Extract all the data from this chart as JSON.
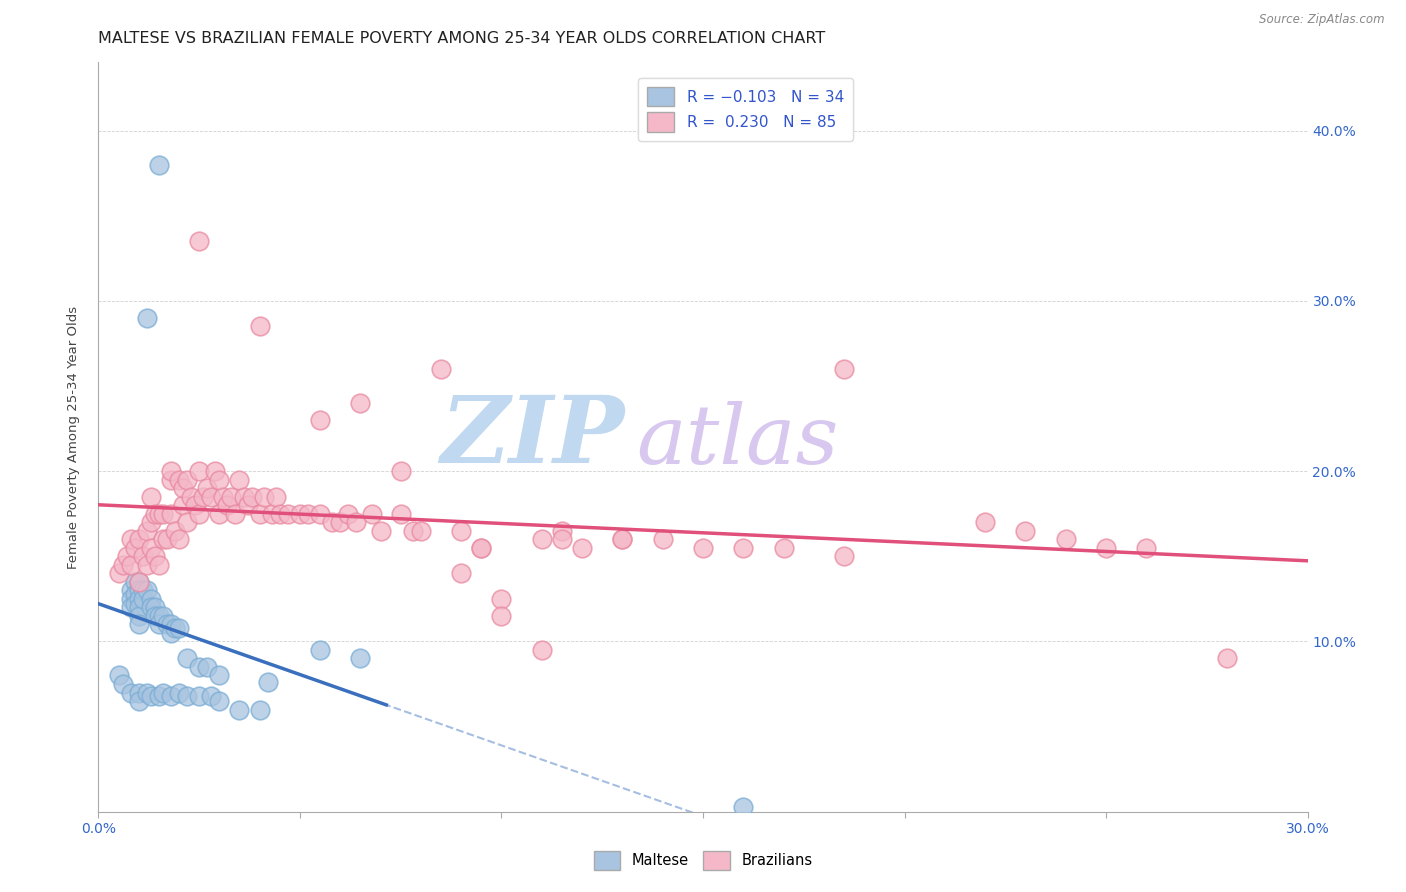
{
  "title": "MALTESE VS BRAZILIAN FEMALE POVERTY AMONG 25-34 YEAR OLDS CORRELATION CHART",
  "source": "Source: ZipAtlas.com",
  "ylabel": "Female Poverty Among 25-34 Year Olds",
  "xlim": [
    0.0,
    0.3
  ],
  "ylim": [
    0.0,
    0.44
  ],
  "xticks": [
    0.0,
    0.3
  ],
  "yticks": [
    0.1,
    0.2,
    0.3,
    0.4
  ],
  "maltese_R": -0.103,
  "maltese_N": 34,
  "brazilian_R": 0.23,
  "brazilian_N": 85,
  "maltese_color": "#a8c4e0",
  "maltese_edge": "#7aadd4",
  "brazilian_color": "#f4b8c8",
  "brazilian_edge": "#e98aa0",
  "maltese_line_color": "#3a6fbd",
  "brazilian_line_color": "#e0507a",
  "background_color": "#ffffff",
  "grid_color": "#cccccc",
  "watermark": "ZIPatlas",
  "watermark_color_zip": "#c0d8f0",
  "watermark_color_atlas": "#d8c8f0",
  "title_fontsize": 11.5,
  "axis_fontsize": 9.5,
  "maltese_x": [
    0.008,
    0.008,
    0.008,
    0.009,
    0.009,
    0.009,
    0.01,
    0.01,
    0.01,
    0.01,
    0.01,
    0.01,
    0.011,
    0.011,
    0.012,
    0.012,
    0.013,
    0.013,
    0.014,
    0.014,
    0.015,
    0.015,
    0.016,
    0.017,
    0.018,
    0.018,
    0.019,
    0.02,
    0.022,
    0.025,
    0.027,
    0.03,
    0.042,
    0.015
  ],
  "maltese_y": [
    0.13,
    0.125,
    0.12,
    0.135,
    0.128,
    0.122,
    0.135,
    0.13,
    0.125,
    0.12,
    0.115,
    0.11,
    0.13,
    0.125,
    0.29,
    0.13,
    0.125,
    0.12,
    0.12,
    0.115,
    0.115,
    0.11,
    0.115,
    0.11,
    0.11,
    0.105,
    0.108,
    0.108,
    0.09,
    0.085,
    0.085,
    0.08,
    0.076,
    0.38
  ],
  "brazilian_x": [
    0.005,
    0.006,
    0.007,
    0.008,
    0.008,
    0.009,
    0.01,
    0.01,
    0.011,
    0.012,
    0.012,
    0.013,
    0.013,
    0.013,
    0.014,
    0.014,
    0.015,
    0.015,
    0.016,
    0.016,
    0.017,
    0.018,
    0.018,
    0.018,
    0.019,
    0.02,
    0.02,
    0.021,
    0.021,
    0.022,
    0.022,
    0.023,
    0.024,
    0.025,
    0.025,
    0.026,
    0.027,
    0.028,
    0.029,
    0.03,
    0.03,
    0.031,
    0.032,
    0.033,
    0.034,
    0.035,
    0.036,
    0.037,
    0.038,
    0.04,
    0.041,
    0.043,
    0.044,
    0.045,
    0.047,
    0.05,
    0.052,
    0.055,
    0.058,
    0.06,
    0.062,
    0.064,
    0.068,
    0.07,
    0.075,
    0.078,
    0.08,
    0.09,
    0.095,
    0.1,
    0.11,
    0.115,
    0.12,
    0.13,
    0.14,
    0.15,
    0.16,
    0.17,
    0.185,
    0.22,
    0.23,
    0.24,
    0.25,
    0.26,
    0.28
  ],
  "brazilian_y": [
    0.14,
    0.145,
    0.15,
    0.145,
    0.16,
    0.155,
    0.135,
    0.16,
    0.15,
    0.145,
    0.165,
    0.155,
    0.17,
    0.185,
    0.15,
    0.175,
    0.145,
    0.175,
    0.16,
    0.175,
    0.16,
    0.195,
    0.2,
    0.175,
    0.165,
    0.16,
    0.195,
    0.18,
    0.19,
    0.17,
    0.195,
    0.185,
    0.18,
    0.175,
    0.2,
    0.185,
    0.19,
    0.185,
    0.2,
    0.175,
    0.195,
    0.185,
    0.18,
    0.185,
    0.175,
    0.195,
    0.185,
    0.18,
    0.185,
    0.175,
    0.185,
    0.175,
    0.185,
    0.175,
    0.175,
    0.175,
    0.175,
    0.175,
    0.17,
    0.17,
    0.175,
    0.17,
    0.175,
    0.165,
    0.175,
    0.165,
    0.165,
    0.165,
    0.155,
    0.125,
    0.16,
    0.165,
    0.155,
    0.16,
    0.16,
    0.155,
    0.155,
    0.155,
    0.15,
    0.17,
    0.165,
    0.16,
    0.155,
    0.155,
    0.09
  ],
  "extra_maltese_x": [
    0.005,
    0.006,
    0.008,
    0.01,
    0.01,
    0.012,
    0.013,
    0.015,
    0.016,
    0.018,
    0.02,
    0.022,
    0.025,
    0.028,
    0.03,
    0.035,
    0.04,
    0.055,
    0.065,
    0.16
  ],
  "extra_maltese_y": [
    0.08,
    0.075,
    0.07,
    0.07,
    0.065,
    0.07,
    0.068,
    0.068,
    0.07,
    0.068,
    0.07,
    0.068,
    0.068,
    0.068,
    0.065,
    0.06,
    0.06,
    0.095,
    0.09,
    0.003
  ],
  "extra_brazilian_x": [
    0.025,
    0.04,
    0.055,
    0.065,
    0.075,
    0.085,
    0.09,
    0.095,
    0.1,
    0.11,
    0.115,
    0.13,
    0.185
  ],
  "extra_brazilian_y": [
    0.335,
    0.285,
    0.23,
    0.24,
    0.2,
    0.26,
    0.14,
    0.155,
    0.115,
    0.095,
    0.16,
    0.16,
    0.26
  ]
}
